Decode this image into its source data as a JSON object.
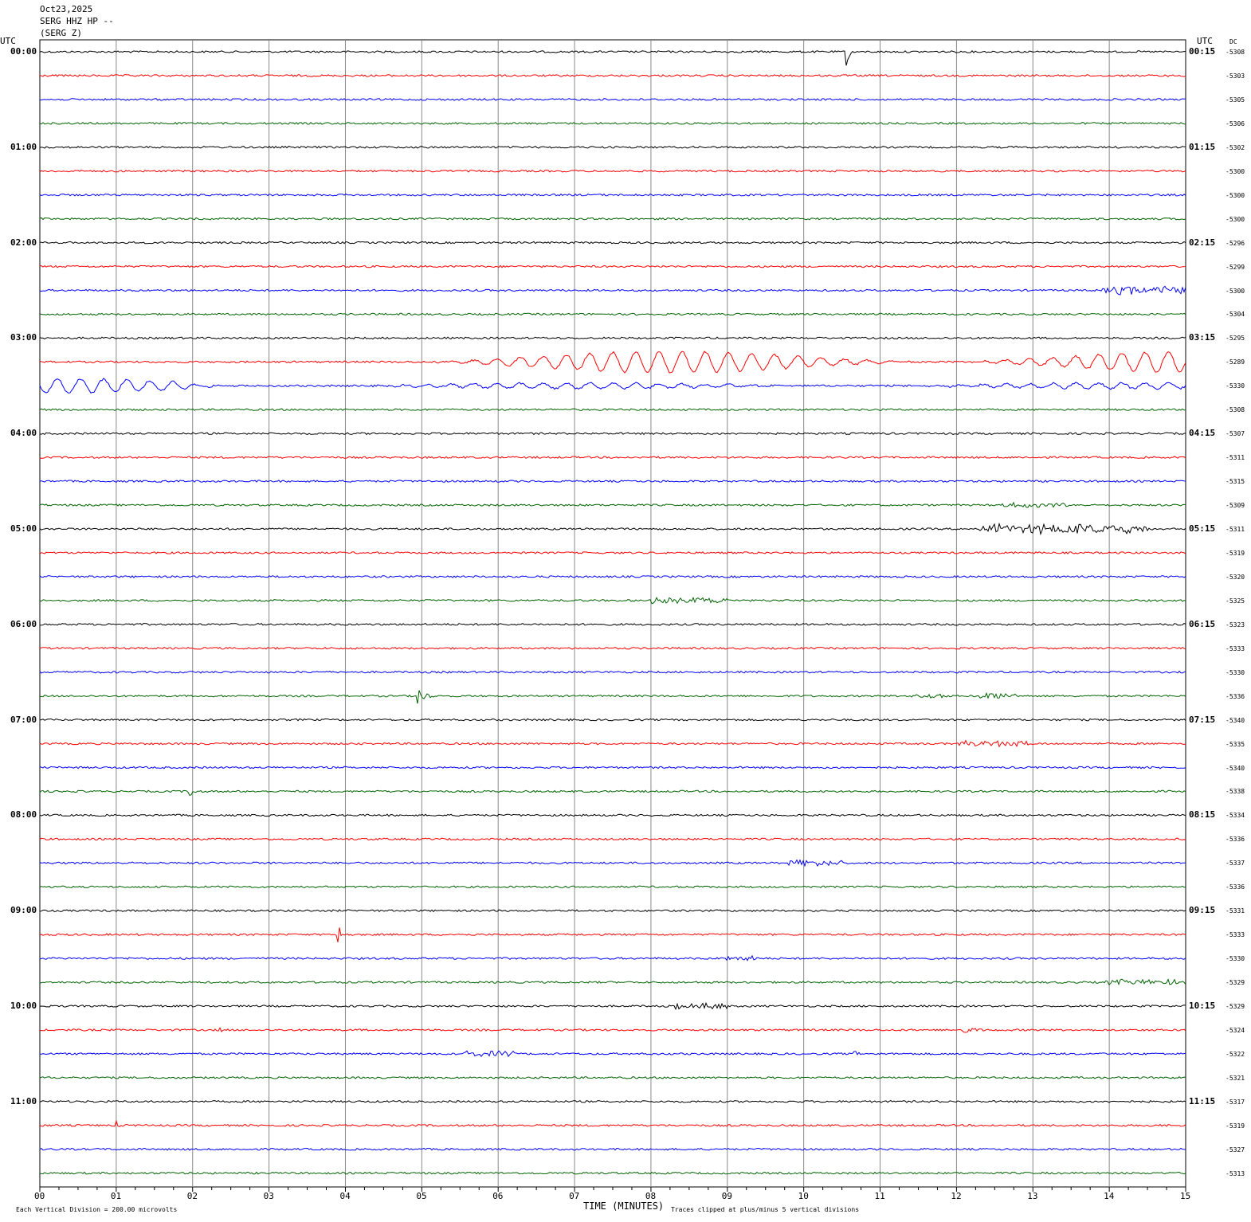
{
  "header": {
    "date": "Oct23,2025",
    "station": "SERG HHZ HP --",
    "channel": "(SERG Z)"
  },
  "left_unit": "UTC",
  "right_unit": "UTC",
  "dc_label": "DC",
  "chart_data": {
    "type": "line",
    "xlabel": "TIME (MINUTES)",
    "xlim": [
      0,
      15
    ],
    "x_ticks": [
      "00",
      "01",
      "02",
      "03",
      "04",
      "05",
      "06",
      "07",
      "08",
      "09",
      "10",
      "11",
      "12",
      "13",
      "14",
      "15"
    ],
    "row_minutes": 15,
    "trace_colors": [
      "#000000",
      "#ff0000",
      "#0000ff",
      "#006400"
    ],
    "left_labels": [
      "00:00",
      "01:00",
      "02:00",
      "03:00",
      "04:00",
      "05:00",
      "06:00",
      "07:00",
      "08:00",
      "09:00",
      "10:00",
      "11:00"
    ],
    "right_labels": [
      "00:15",
      "01:15",
      "02:15",
      "03:15",
      "04:15",
      "05:15",
      "06:15",
      "07:15",
      "08:15",
      "09:15",
      "10:15",
      "11:15"
    ],
    "dc_values": [
      "-5308",
      "-5303",
      "-5305",
      "-5306",
      "-5302",
      "-5300",
      "-5300",
      "-5300",
      "-5296",
      "-5299",
      "-5300",
      "-5304",
      "-5295",
      "-5289",
      "-5330",
      "-5308",
      "-5307",
      "-5311",
      "-5315",
      "-5309",
      "-5311",
      "-5319",
      "-5320",
      "-5325",
      "-5323",
      "-5333",
      "-5330",
      "-5336",
      "-5340",
      "-5335",
      "-5340",
      "-5338",
      "-5334",
      "-5336",
      "-5337",
      "-5336",
      "-5331",
      "-5333",
      "-5330",
      "-5329",
      "-5329",
      "-5324",
      "-5322",
      "-5321",
      "-5317",
      "-5319",
      "-5327",
      "-5313"
    ],
    "events": [
      {
        "row": 0,
        "start": 10.55,
        "end": 10.75,
        "amp": 0.7,
        "kind": "spike"
      },
      {
        "row": 10,
        "start": 13.9,
        "end": 15,
        "amp": 0.15,
        "kind": "burst"
      },
      {
        "row": 13,
        "start": 5,
        "end": 15,
        "amp": 0.45,
        "kind": "long"
      },
      {
        "row": 14,
        "start": 0,
        "end": 2,
        "amp": 0.3,
        "kind": "long"
      },
      {
        "row": 14,
        "start": 2,
        "end": 15,
        "amp": 0.12,
        "kind": "long"
      },
      {
        "row": 19,
        "start": 12.6,
        "end": 13.6,
        "amp": 0.08,
        "kind": "burst"
      },
      {
        "row": 20,
        "start": 12.3,
        "end": 14.5,
        "amp": 0.18,
        "kind": "burst"
      },
      {
        "row": 23,
        "start": 8,
        "end": 9,
        "amp": 0.1,
        "kind": "burst"
      },
      {
        "row": 27,
        "start": 4.93,
        "end": 5.2,
        "amp": 0.8,
        "kind": "spike"
      },
      {
        "row": 27,
        "start": 11.4,
        "end": 11.9,
        "amp": 0.08,
        "kind": "burst"
      },
      {
        "row": 27,
        "start": 12.3,
        "end": 12.8,
        "amp": 0.12,
        "kind": "burst"
      },
      {
        "row": 29,
        "start": 12,
        "end": 13,
        "amp": 0.1,
        "kind": "burst"
      },
      {
        "row": 31,
        "start": 1.95,
        "end": 2.1,
        "amp": 0.6,
        "kind": "spike"
      },
      {
        "row": 34,
        "start": 9.8,
        "end": 10.5,
        "amp": 0.1,
        "kind": "burst"
      },
      {
        "row": 37,
        "start": 3.9,
        "end": 4.1,
        "amp": 0.6,
        "kind": "spike"
      },
      {
        "row": 38,
        "start": 8.9,
        "end": 9.4,
        "amp": 0.1,
        "kind": "burst"
      },
      {
        "row": 39,
        "start": 13.9,
        "end": 15,
        "amp": 0.1,
        "kind": "burst"
      },
      {
        "row": 40,
        "start": 8.3,
        "end": 9,
        "amp": 0.1,
        "kind": "burst"
      },
      {
        "row": 41,
        "start": 2.35,
        "end": 2.45,
        "amp": 0.2,
        "kind": "spike"
      },
      {
        "row": 41,
        "start": 12.0,
        "end": 12.4,
        "amp": 0.5,
        "kind": "spike"
      },
      {
        "row": 42,
        "start": 10.65,
        "end": 10.8,
        "amp": 0.55,
        "kind": "spike"
      },
      {
        "row": 42,
        "start": 5.5,
        "end": 6.2,
        "amp": 0.1,
        "kind": "burst"
      },
      {
        "row": 45,
        "start": 1.0,
        "end": 1.1,
        "amp": 0.2,
        "kind": "spike"
      },
      {
        "row": 45,
        "start": 14.5,
        "end": 14.6,
        "amp": 0.2,
        "kind": "spike"
      }
    ]
  },
  "footer": {
    "scale": "Each Vertical Division =  200.00 microvolts",
    "clip": "Traces clipped at plus/minus 5 vertical divisions"
  }
}
